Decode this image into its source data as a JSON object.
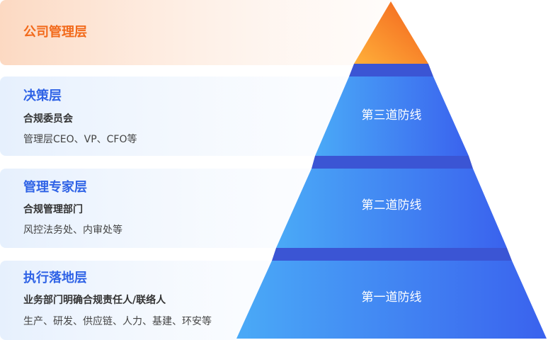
{
  "top": {
    "title": "公司管理层"
  },
  "layers": [
    {
      "title": "决策层",
      "subtitle": "合规委员会",
      "description": "管理层CEO、VP、CFO等",
      "line": "第三道防线"
    },
    {
      "title": "管理专家层",
      "subtitle": "合规管理部门",
      "description": "风控法务处、内审处等",
      "line": "第二道防线"
    },
    {
      "title": "执行落地层",
      "subtitle": "业务部门明确合规责任人/联络人",
      "description": "生产、研发、供应链、人力、基建、环安等",
      "line": "第一道防线"
    }
  ]
}
